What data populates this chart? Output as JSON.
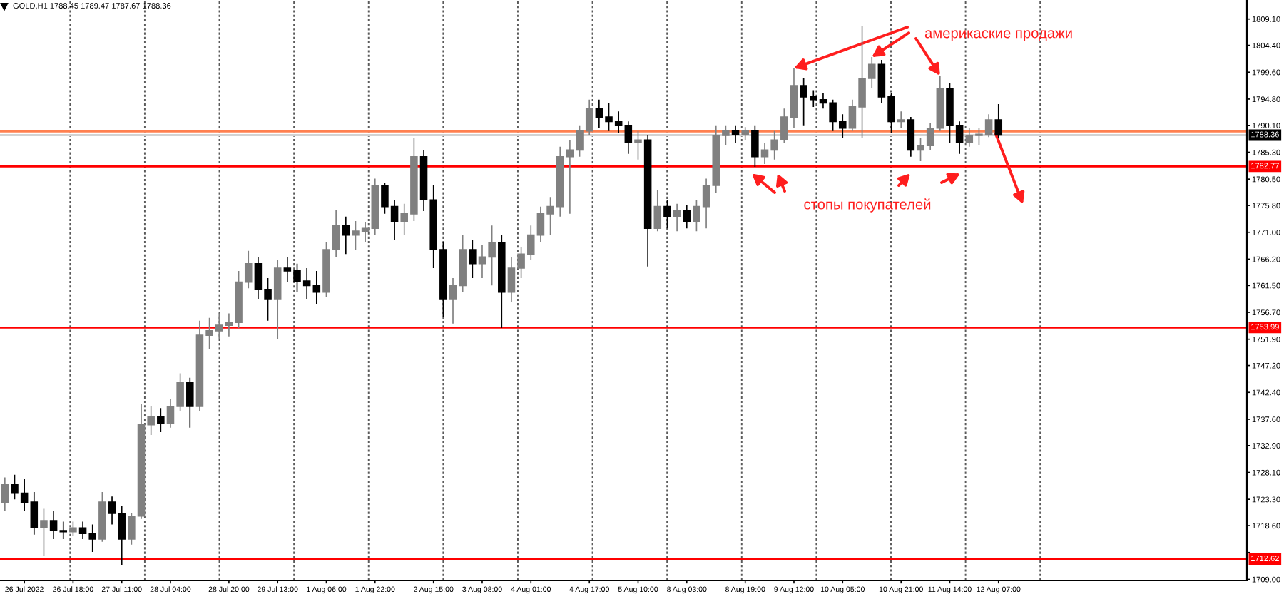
{
  "chart_data": {
    "type": "candlestick",
    "title": "GOLD,H1 1788.45 1789.47 1787.67 1788.36",
    "categories": [
      null,
      null,
      "26 Jul 2022",
      null,
      null,
      null,
      null,
      "26 Jul 18:00",
      null,
      null,
      null,
      null,
      "27 Jul 11:00",
      null,
      null,
      null,
      null,
      "28 Jul 04:00",
      null,
      null,
      null,
      null,
      null,
      "28 Jul 20:00",
      null,
      null,
      null,
      null,
      "29 Jul 13:00",
      null,
      null,
      null,
      null,
      "1 Aug 06:00",
      null,
      null,
      null,
      null,
      "1 Aug 22:00",
      null,
      null,
      null,
      null,
      null,
      "2 Aug 15:00",
      null,
      null,
      null,
      null,
      "3 Aug 08:00",
      null,
      null,
      null,
      null,
      "4 Aug 01:00",
      null,
      null,
      null,
      null,
      null,
      "4 Aug 17:00",
      null,
      null,
      null,
      null,
      "5 Aug 10:00",
      null,
      null,
      null,
      null,
      "8 Aug 03:00",
      null,
      null,
      null,
      null,
      null,
      "8 Aug 19:00",
      null,
      null,
      null,
      null,
      "9 Aug 12:00",
      null,
      null,
      null,
      null,
      "10 Aug 05:00",
      null,
      null,
      null,
      null,
      null,
      "10 Aug 21:00",
      null,
      null,
      null,
      null,
      "11 Aug 14:00",
      null,
      null,
      null,
      null,
      "12 Aug 07:00",
      null,
      null,
      null,
      null,
      null,
      null,
      null,
      null,
      null,
      null,
      null,
      null,
      null,
      null,
      null,
      null,
      null,
      null,
      null,
      null,
      null,
      null,
      null,
      null,
      null
    ],
    "ohlc": [
      [
        1722.8,
        1727.2,
        1721.3,
        1725.9
      ],
      [
        1725.9,
        1727.7,
        1723.3,
        1724.4
      ],
      [
        1724.4,
        1726.9,
        1721.3,
        1722.8
      ],
      [
        1722.8,
        1724.6,
        1717.0,
        1718.2
      ],
      [
        1718.2,
        1721.6,
        1713.2,
        1719.5
      ],
      [
        1719.5,
        1721.3,
        1716.2,
        1717.7
      ],
      [
        1717.7,
        1719.3,
        1716.2,
        1717.5
      ],
      [
        1717.5,
        1719.3,
        1716.7,
        1718.2
      ],
      [
        1718.2,
        1719.3,
        1716.2,
        1717.2
      ],
      [
        1717.2,
        1718.8,
        1713.9,
        1716.2
      ],
      [
        1716.2,
        1724.6,
        1715.7,
        1722.8
      ],
      [
        1722.8,
        1723.8,
        1718.8,
        1720.8
      ],
      [
        1720.8,
        1722.1,
        1711.6,
        1716.2
      ],
      [
        1716.2,
        1720.8,
        1715.2,
        1720.3
      ],
      [
        1720.3,
        1740.4,
        1719.8,
        1736.6
      ],
      [
        1736.6,
        1739.9,
        1734.8,
        1738.1
      ],
      [
        1738.1,
        1739.6,
        1735.3,
        1736.8
      ],
      [
        1736.8,
        1741.2,
        1736.1,
        1739.9
      ],
      [
        1739.9,
        1745.8,
        1739.1,
        1744.2
      ],
      [
        1744.2,
        1745.0,
        1736.1,
        1739.9
      ],
      [
        1739.9,
        1755.2,
        1739.1,
        1752.6
      ],
      [
        1752.6,
        1755.7,
        1750.1,
        1753.4
      ],
      [
        1753.4,
        1756.5,
        1751.9,
        1754.4
      ],
      [
        1754.4,
        1756.5,
        1752.4,
        1754.9
      ],
      [
        1754.9,
        1764.1,
        1753.9,
        1762.1
      ],
      [
        1762.1,
        1767.7,
        1761.0,
        1765.4
      ],
      [
        1765.4,
        1766.6,
        1759.0,
        1760.8
      ],
      [
        1760.8,
        1762.8,
        1755.2,
        1759.0
      ],
      [
        1759.0,
        1766.1,
        1751.9,
        1764.6
      ],
      [
        1764.6,
        1766.6,
        1762.1,
        1764.1
      ],
      [
        1764.1,
        1765.4,
        1760.3,
        1762.3
      ],
      [
        1762.3,
        1764.6,
        1759.0,
        1761.5
      ],
      [
        1761.5,
        1764.1,
        1758.2,
        1760.3
      ],
      [
        1760.3,
        1769.2,
        1759.5,
        1767.9
      ],
      [
        1767.9,
        1775.0,
        1766.6,
        1772.2
      ],
      [
        1772.2,
        1773.8,
        1767.1,
        1770.5
      ],
      [
        1770.5,
        1773.0,
        1767.9,
        1771.2
      ],
      [
        1771.2,
        1772.8,
        1769.2,
        1771.7
      ],
      [
        1771.7,
        1780.6,
        1770.5,
        1779.4
      ],
      [
        1779.4,
        1779.9,
        1774.3,
        1775.6
      ],
      [
        1775.6,
        1776.8,
        1769.7,
        1773.0
      ],
      [
        1773.0,
        1776.1,
        1770.5,
        1774.3
      ],
      [
        1774.3,
        1787.8,
        1773.0,
        1784.5
      ],
      [
        1784.5,
        1785.7,
        1774.8,
        1776.8
      ],
      [
        1776.8,
        1779.4,
        1764.6,
        1767.9
      ],
      [
        1767.9,
        1769.2,
        1755.9,
        1759.0
      ],
      [
        1759.0,
        1762.8,
        1754.7,
        1761.5
      ],
      [
        1761.5,
        1770.5,
        1760.3,
        1767.9
      ],
      [
        1767.9,
        1769.7,
        1762.8,
        1765.4
      ],
      [
        1765.4,
        1768.7,
        1762.8,
        1766.6
      ],
      [
        1766.6,
        1772.2,
        1761.5,
        1769.2
      ],
      [
        1769.2,
        1770.5,
        1753.9,
        1760.3
      ],
      [
        1760.3,
        1766.6,
        1758.5,
        1764.6
      ],
      [
        1764.6,
        1768.4,
        1762.8,
        1767.1
      ],
      [
        1767.1,
        1772.2,
        1766.1,
        1770.5
      ],
      [
        1770.5,
        1775.6,
        1769.2,
        1774.3
      ],
      [
        1774.3,
        1777.3,
        1770.5,
        1775.6
      ],
      [
        1775.6,
        1786.3,
        1773.8,
        1784.5
      ],
      [
        1784.5,
        1787.5,
        1774.3,
        1785.7
      ],
      [
        1785.7,
        1790.1,
        1784.5,
        1789.1
      ],
      [
        1789.1,
        1794.7,
        1788.3,
        1793.1
      ],
      [
        1793.1,
        1794.7,
        1789.6,
        1791.6
      ],
      [
        1791.6,
        1794.1,
        1789.1,
        1790.8
      ],
      [
        1790.8,
        1792.6,
        1788.8,
        1790.1
      ],
      [
        1790.1,
        1790.8,
        1785.0,
        1787.0
      ],
      [
        1787.0,
        1789.1,
        1784.0,
        1787.5
      ],
      [
        1787.5,
        1788.3,
        1764.9,
        1771.7
      ],
      [
        1771.7,
        1778.6,
        1771.2,
        1775.6
      ],
      [
        1775.6,
        1776.8,
        1771.7,
        1773.8
      ],
      [
        1773.8,
        1776.1,
        1771.2,
        1774.8
      ],
      [
        1774.8,
        1775.8,
        1771.7,
        1773.0
      ],
      [
        1773.0,
        1776.8,
        1771.2,
        1775.6
      ],
      [
        1775.6,
        1780.6,
        1771.7,
        1779.4
      ],
      [
        1779.4,
        1790.1,
        1778.1,
        1788.3
      ],
      [
        1788.3,
        1790.1,
        1786.5,
        1789.1
      ],
      [
        1789.1,
        1790.1,
        1787.0,
        1788.5
      ],
      [
        1788.5,
        1789.8,
        1787.5,
        1789.1
      ],
      [
        1789.1,
        1790.1,
        1782.7,
        1784.5
      ],
      [
        1784.5,
        1787.0,
        1783.2,
        1785.7
      ],
      [
        1785.7,
        1789.1,
        1784.0,
        1787.5
      ],
      [
        1787.5,
        1793.1,
        1787.0,
        1791.6
      ],
      [
        1791.6,
        1800.3,
        1789.6,
        1797.2
      ],
      [
        1797.2,
        1798.5,
        1790.1,
        1795.2
      ],
      [
        1795.2,
        1796.4,
        1793.4,
        1794.7
      ],
      [
        1794.7,
        1795.9,
        1793.1,
        1794.1
      ],
      [
        1794.1,
        1794.7,
        1789.1,
        1790.8
      ],
      [
        1790.8,
        1792.1,
        1787.8,
        1789.6
      ],
      [
        1789.6,
        1794.7,
        1789.1,
        1793.4
      ],
      [
        1793.4,
        1807.9,
        1787.8,
        1798.5
      ],
      [
        1798.5,
        1802.3,
        1796.7,
        1801.0
      ],
      [
        1801.0,
        1801.8,
        1794.1,
        1795.2
      ],
      [
        1795.2,
        1795.9,
        1788.8,
        1790.8
      ],
      [
        1790.8,
        1792.6,
        1789.6,
        1791.1
      ],
      [
        1791.1,
        1791.6,
        1784.5,
        1785.7
      ],
      [
        1785.7,
        1787.8,
        1783.7,
        1786.5
      ],
      [
        1786.5,
        1790.6,
        1785.7,
        1789.6
      ],
      [
        1789.6,
        1799.0,
        1789.1,
        1796.7
      ],
      [
        1796.7,
        1797.7,
        1787.0,
        1790.1
      ],
      [
        1790.1,
        1790.8,
        1785.0,
        1787.0
      ],
      [
        1787.0,
        1789.6,
        1786.3,
        1788.3
      ],
      [
        1788.3,
        1789.6,
        1786.5,
        1788.5
      ],
      [
        1788.5,
        1792.1,
        1788.0,
        1791.1
      ],
      [
        1791.1,
        1793.9,
        1787.8,
        1788.36
      ],
      null,
      null,
      null,
      null,
      null,
      null,
      null,
      null,
      null,
      null,
      null,
      null,
      null,
      null,
      null,
      null,
      null,
      null,
      null,
      null,
      null,
      null,
      null,
      null,
      null
    ],
    "colors": [
      "#808080",
      "#000000",
      "#000000",
      "#000000",
      "#808080",
      "#000000",
      "#000000",
      "#808080",
      "#000000",
      "#000000",
      "#808080",
      "#000000",
      "#000000",
      "#808080",
      "#808080",
      "#808080",
      "#000000",
      "#808080",
      "#808080",
      "#000000",
      "#808080",
      "#808080",
      "#808080",
      "#808080",
      "#808080",
      "#808080",
      "#000000",
      "#000000",
      "#808080",
      "#000000",
      "#000000",
      "#000000",
      "#000000",
      "#808080",
      "#808080",
      "#000000",
      "#808080",
      "#808080",
      "#808080",
      "#000000",
      "#000000",
      "#808080",
      "#808080",
      "#000000",
      "#000000",
      "#000000",
      "#808080",
      "#808080",
      "#000000",
      "#808080",
      "#808080",
      "#000000",
      "#808080",
      "#808080",
      "#808080",
      "#808080",
      "#808080",
      "#808080",
      "#808080",
      "#808080",
      "#808080",
      "#000000",
      "#000000",
      "#000000",
      "#000000",
      "#808080",
      "#000000",
      "#808080",
      "#000000",
      "#808080",
      "#000000",
      "#808080",
      "#808080",
      "#808080",
      "#808080",
      "#000000",
      "#808080",
      "#000000",
      "#808080",
      "#808080",
      "#808080",
      "#808080",
      "#000000",
      "#000000",
      "#000000",
      "#000000",
      "#000000",
      "#808080",
      "#808080",
      "#808080",
      "#000000",
      "#000000",
      "#808080",
      "#000000",
      "#808080",
      "#808080",
      "#808080",
      "#000000",
      "#000000",
      "#808080",
      "#808080",
      "#808080",
      "#000000",
      null,
      null,
      null,
      null,
      null,
      null,
      null,
      null,
      null,
      null,
      null,
      null,
      null,
      null,
      null,
      null,
      null,
      null,
      null,
      null,
      null,
      null,
      null,
      null,
      null
    ],
    "ylim": [
      1708.8,
      1812.5
    ],
    "yticks": [
      {
        "value": 1709.0,
        "label": "1709.00"
      },
      {
        "value": 1713.8,
        "label": null
      },
      {
        "value": 1718.6,
        "label": "1718.60"
      },
      {
        "value": 1723.3,
        "label": "1723.30"
      },
      {
        "value": 1728.1,
        "label": "1728.10"
      },
      {
        "value": 1732.9,
        "label": "1732.90"
      },
      {
        "value": 1737.6,
        "label": "1737.60"
      },
      {
        "value": 1742.4,
        "label": "1742.40"
      },
      {
        "value": 1747.2,
        "label": "1747.20"
      },
      {
        "value": 1751.9,
        "label": "1751.90"
      },
      {
        "value": 1756.7,
        "label": "1756.70"
      },
      {
        "value": 1761.5,
        "label": "1761.50"
      },
      {
        "value": 1766.2,
        "label": "1766.20"
      },
      {
        "value": 1771.0,
        "label": "1771.00"
      },
      {
        "value": 1775.8,
        "label": "1775.80"
      },
      {
        "value": 1780.5,
        "label": "1780.50"
      },
      {
        "value": 1785.3,
        "label": "1785.30"
      },
      {
        "value": 1790.1,
        "label": "1790.10"
      },
      {
        "value": 1794.8,
        "label": "1794.80"
      },
      {
        "value": 1799.6,
        "label": "1799.60"
      },
      {
        "value": 1804.4,
        "label": "1804.40"
      },
      {
        "value": 1809.1,
        "label": "1809.10"
      }
    ],
    "ref_lines": [
      {
        "axis": "y",
        "value": 1789.0,
        "color": "#ff8050"
      },
      {
        "axis": "y",
        "value": 1788.36,
        "label": "1788.36",
        "color": "#d3d3d3"
      },
      {
        "axis": "y",
        "value": 1782.77,
        "label": "1782.77",
        "color": "#ff0000"
      },
      {
        "axis": "y",
        "value": 1753.99,
        "label": "1753.99",
        "color": "#ff0000"
      },
      {
        "axis": "y",
        "value": 1712.62,
        "label": "1712.62",
        "color": "#ff0000"
      }
    ],
    "annotations": [
      {
        "text": "америкаские продажи",
        "x": "9 Aug 12:00",
        "y": 1800.3
      },
      {
        "text": "стопы покупателей",
        "y": 1781.5
      }
    ]
  }
}
